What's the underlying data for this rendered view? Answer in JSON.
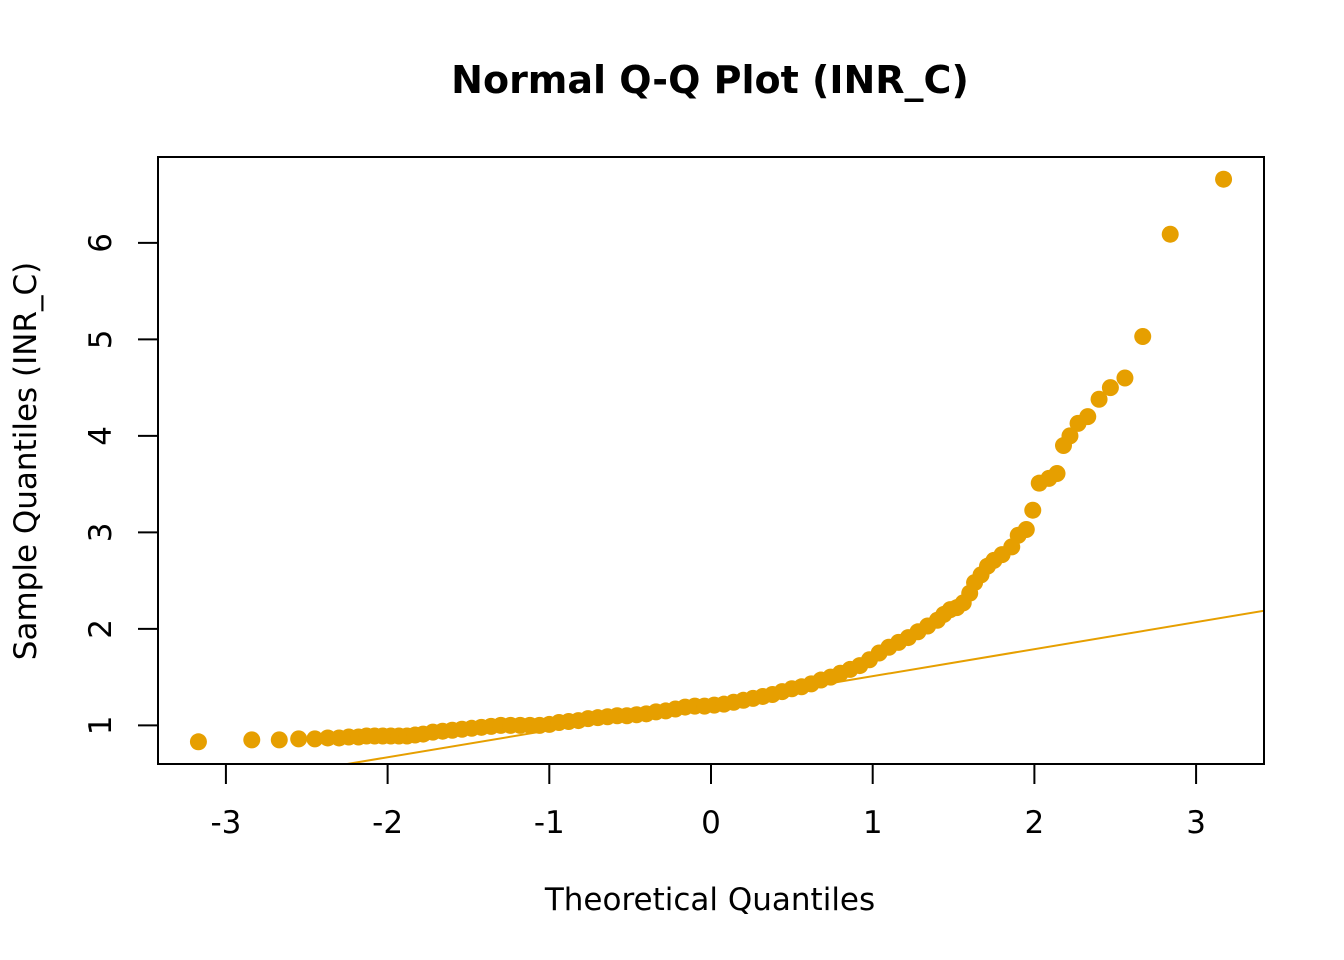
{
  "chart_data": {
    "type": "scatter",
    "title": "Normal Q-Q Plot (INR_C)",
    "xlabel": "Theoretical Quantiles",
    "ylabel": "Sample Quantiles (INR_C)",
    "xlim": [
      -3.42,
      3.42
    ],
    "ylim": [
      0.6,
      6.89
    ],
    "x_ticks": [
      -3,
      -2,
      -1,
      0,
      1,
      2,
      3
    ],
    "x_tick_labels": [
      "-3",
      "-2",
      "-1",
      "0",
      "1",
      "2",
      "3"
    ],
    "y_ticks": [
      1,
      2,
      3,
      4,
      5,
      6
    ],
    "y_tick_labels": [
      "1",
      "2",
      "3",
      "4",
      "5",
      "6"
    ],
    "point_color": "#E69F00",
    "line_color": "#E69F00",
    "reference_line": {
      "intercept": 1.23,
      "slope": 0.28
    },
    "points": [
      [
        -3.17,
        0.83
      ],
      [
        -2.84,
        0.85
      ],
      [
        -2.67,
        0.85
      ],
      [
        -2.55,
        0.86
      ],
      [
        -2.45,
        0.86
      ],
      [
        -2.37,
        0.87
      ],
      [
        -2.3,
        0.87
      ],
      [
        -2.24,
        0.88
      ],
      [
        -2.18,
        0.88
      ],
      [
        -2.13,
        0.89
      ],
      [
        -2.08,
        0.89
      ],
      [
        -2.03,
        0.89
      ],
      [
        -1.98,
        0.89
      ],
      [
        -1.93,
        0.89
      ],
      [
        -1.88,
        0.89
      ],
      [
        -1.83,
        0.9
      ],
      [
        -1.78,
        0.91
      ],
      [
        -1.72,
        0.93
      ],
      [
        -1.66,
        0.94
      ],
      [
        -1.6,
        0.95
      ],
      [
        -1.54,
        0.96
      ],
      [
        -1.48,
        0.97
      ],
      [
        -1.42,
        0.98
      ],
      [
        -1.36,
        0.99
      ],
      [
        -1.3,
        1.0
      ],
      [
        -1.24,
        1.0
      ],
      [
        -1.18,
        1.0
      ],
      [
        -1.12,
        1.0
      ],
      [
        -1.06,
        1.0
      ],
      [
        -1.0,
        1.01
      ],
      [
        -0.94,
        1.03
      ],
      [
        -0.88,
        1.04
      ],
      [
        -0.82,
        1.05
      ],
      [
        -0.76,
        1.07
      ],
      [
        -0.7,
        1.08
      ],
      [
        -0.64,
        1.09
      ],
      [
        -0.58,
        1.1
      ],
      [
        -0.52,
        1.1
      ],
      [
        -0.46,
        1.11
      ],
      [
        -0.4,
        1.12
      ],
      [
        -0.34,
        1.14
      ],
      [
        -0.28,
        1.15
      ],
      [
        -0.22,
        1.17
      ],
      [
        -0.16,
        1.19
      ],
      [
        -0.1,
        1.2
      ],
      [
        -0.04,
        1.2
      ],
      [
        0.02,
        1.21
      ],
      [
        0.08,
        1.22
      ],
      [
        0.14,
        1.24
      ],
      [
        0.2,
        1.26
      ],
      [
        0.26,
        1.28
      ],
      [
        0.32,
        1.3
      ],
      [
        0.38,
        1.32
      ],
      [
        0.44,
        1.35
      ],
      [
        0.5,
        1.38
      ],
      [
        0.56,
        1.4
      ],
      [
        0.62,
        1.43
      ],
      [
        0.68,
        1.47
      ],
      [
        0.74,
        1.5
      ],
      [
        0.8,
        1.54
      ],
      [
        0.86,
        1.58
      ],
      [
        0.92,
        1.62
      ],
      [
        0.98,
        1.68
      ],
      [
        1.04,
        1.75
      ],
      [
        1.1,
        1.81
      ],
      [
        1.16,
        1.86
      ],
      [
        1.22,
        1.91
      ],
      [
        1.28,
        1.97
      ],
      [
        1.34,
        2.03
      ],
      [
        1.4,
        2.09
      ],
      [
        1.44,
        2.15
      ],
      [
        1.48,
        2.2
      ],
      [
        1.52,
        2.22
      ],
      [
        1.56,
        2.27
      ],
      [
        1.6,
        2.37
      ],
      [
        1.63,
        2.48
      ],
      [
        1.67,
        2.56
      ],
      [
        1.71,
        2.65
      ],
      [
        1.75,
        2.71
      ],
      [
        1.8,
        2.77
      ],
      [
        1.86,
        2.85
      ],
      [
        1.9,
        2.97
      ],
      [
        1.95,
        3.03
      ],
      [
        1.99,
        3.23
      ],
      [
        2.03,
        3.51
      ],
      [
        2.09,
        3.56
      ],
      [
        2.14,
        3.61
      ],
      [
        2.18,
        3.9
      ],
      [
        2.22,
        4.0
      ],
      [
        2.27,
        4.13
      ],
      [
        2.33,
        4.2
      ],
      [
        2.4,
        4.38
      ],
      [
        2.47,
        4.5
      ],
      [
        2.56,
        4.6
      ],
      [
        2.67,
        5.03
      ],
      [
        2.84,
        6.09
      ],
      [
        3.17,
        6.66
      ]
    ]
  }
}
